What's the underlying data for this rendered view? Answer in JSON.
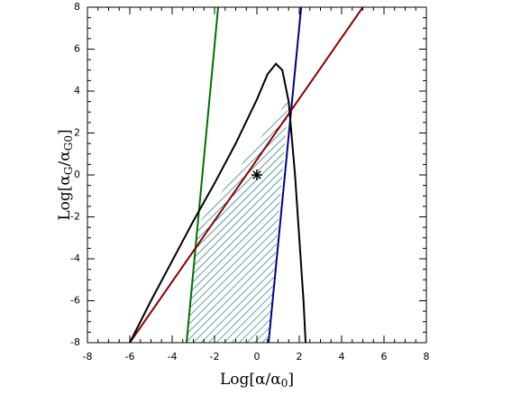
{
  "chart_data": {
    "type": "line",
    "xlabel": [
      "Log[α/α",
      "0",
      "]"
    ],
    "ylabel": [
      "Log[α",
      "G",
      "/α",
      "G0",
      "]"
    ],
    "xlim": [
      -8,
      8
    ],
    "ylim": [
      -8,
      8
    ],
    "xticks": [
      -8,
      -6,
      -4,
      -2,
      0,
      2,
      4,
      6,
      8
    ],
    "yticks": [
      -8,
      -6,
      -4,
      -2,
      0,
      2,
      4,
      6,
      8
    ],
    "series": [
      {
        "color": "#007000",
        "x": [
          -3.32,
          -1.83
        ],
        "y": [
          -8,
          8
        ]
      },
      {
        "color": "#00008b",
        "x": [
          0.55,
          2.09
        ],
        "y": [
          -8,
          8
        ]
      },
      {
        "color": "#8b0000",
        "x": [
          -6,
          5
        ],
        "y": [
          -8,
          8
        ]
      },
      {
        "color": "#000000",
        "x": [
          -6,
          -5,
          -4,
          -3,
          -2,
          -1,
          0,
          0.5,
          0.9,
          1.2,
          1.5,
          1.8,
          2.0,
          2.2,
          2.3
        ],
        "y": [
          -8,
          -6,
          -4.1,
          -2.2,
          -0.4,
          1.5,
          3.6,
          4.8,
          5.3,
          5.0,
          3.5,
          0,
          -3,
          -6,
          -8
        ]
      }
    ],
    "region": {
      "color": "#006464",
      "x": [
        -3.32,
        -2.8,
        1.49,
        0.55
      ],
      "y": [
        -8,
        -2.4,
        3.6,
        -8
      ]
    },
    "marker": {
      "color": "#000000",
      "x": [
        0
      ],
      "y": [
        0
      ]
    }
  }
}
